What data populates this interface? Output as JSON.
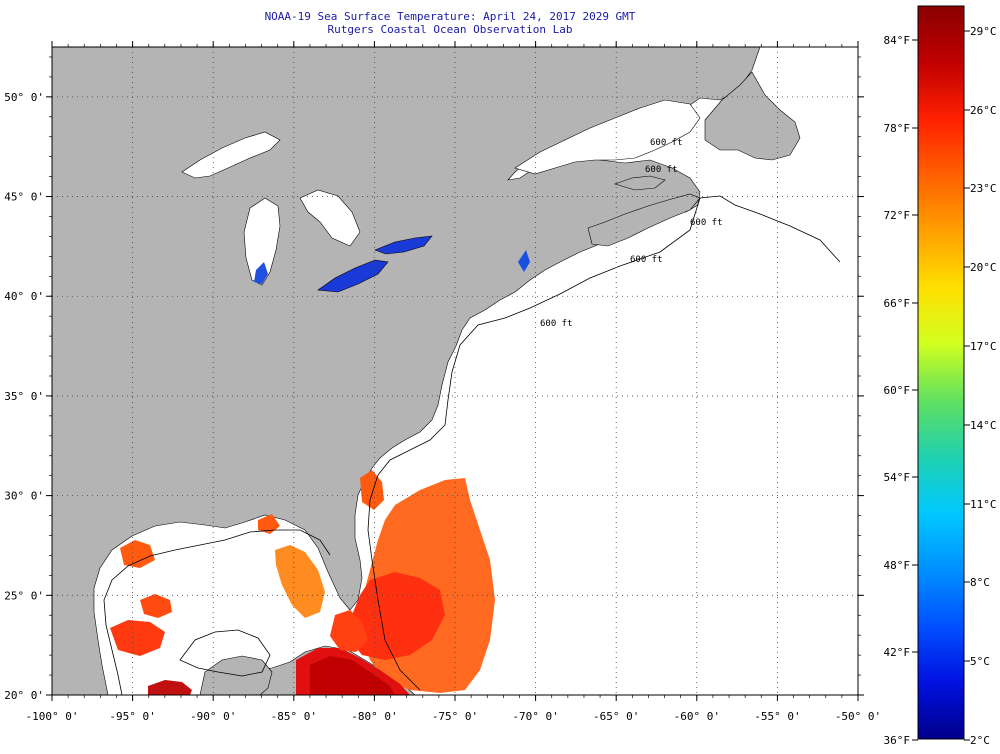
{
  "title_line1": "NOAA-19 Sea Surface Temperature:  April 24, 2017 2029 GMT",
  "title_line2": "Rutgers Coastal Ocean Observation Lab",
  "colors": {
    "land": "#b4b4b4",
    "ocean_nodata": "#ffffff",
    "grid": "#444444",
    "title": "#1a1aa6"
  },
  "map": {
    "lon_range": [
      -100,
      -50
    ],
    "lat_range": [
      20,
      52.5
    ],
    "lon_ticks": [
      {
        "value": -100,
        "label": "-100° 0'"
      },
      {
        "value": -95,
        "label": "-95° 0'"
      },
      {
        "value": -90,
        "label": "-90° 0'"
      },
      {
        "value": -85,
        "label": "-85° 0'"
      },
      {
        "value": -80,
        "label": "-80° 0'"
      },
      {
        "value": -75,
        "label": "-75° 0'"
      },
      {
        "value": -70,
        "label": "-70° 0'"
      },
      {
        "value": -65,
        "label": "-65° 0'"
      },
      {
        "value": -60,
        "label": "-60° 0'"
      },
      {
        "value": -55,
        "label": "-55° 0'"
      },
      {
        "value": -50,
        "label": "-50° 0'"
      }
    ],
    "lat_ticks": [
      {
        "value": 20,
        "label": "20° 0'"
      },
      {
        "value": 25,
        "label": "25° 0'"
      },
      {
        "value": 30,
        "label": "30° 0'"
      },
      {
        "value": 35,
        "label": "35° 0'"
      },
      {
        "value": 40,
        "label": "40° 0'"
      },
      {
        "value": 45,
        "label": "45° 0'"
      },
      {
        "value": 50,
        "label": "50° 0'"
      }
    ],
    "contour_labels": [
      "600 ft",
      "600 ft",
      "600 ft",
      "600 ft",
      "600 ft"
    ]
  },
  "colorbar": {
    "fahrenheit_labels": [
      "84°F",
      "78°F",
      "72°F",
      "66°F",
      "60°F",
      "54°F",
      "48°F",
      "42°F",
      "36°F"
    ],
    "celsius_labels": [
      "29°C",
      "26°C",
      "23°C",
      "20°C",
      "17°C",
      "14°C",
      "11°C",
      "8°C",
      "5°C",
      "2°C"
    ],
    "gradient": [
      "#8b0000",
      "#c00000",
      "#ff2000",
      "#ff6000",
      "#ffa000",
      "#ffe000",
      "#d0ff20",
      "#60e060",
      "#20d0b0",
      "#00c8ff",
      "#0090ff",
      "#0050ff",
      "#0010e0",
      "#00008b"
    ]
  }
}
